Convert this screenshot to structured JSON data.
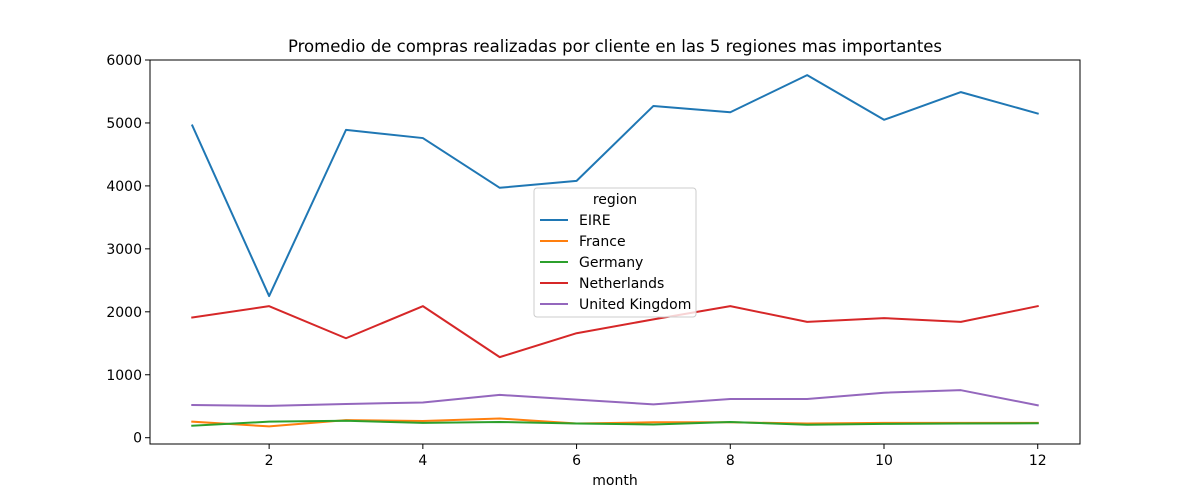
{
  "chart_data": {
    "type": "line",
    "title": "Promedio de compras realizadas por cliente en las 5 regiones mas importantes",
    "xlabel": "month",
    "ylabel": "",
    "xlim": [
      0.45,
      12.55
    ],
    "ylim": [
      -100,
      6000
    ],
    "xticks": [
      2,
      4,
      6,
      8,
      10,
      12
    ],
    "yticks": [
      0,
      1000,
      2000,
      3000,
      4000,
      5000,
      6000
    ],
    "x": [
      1,
      2,
      3,
      4,
      5,
      6,
      7,
      8,
      9,
      10,
      11,
      12
    ],
    "legend_title": "region",
    "legend_position": "center",
    "grid": false,
    "series": [
      {
        "name": "EIRE",
        "color": "#1f77b4",
        "values": [
          4960,
          2250,
          4890,
          4760,
          3970,
          4080,
          5270,
          5170,
          5760,
          5050,
          5490,
          5150
        ]
      },
      {
        "name": "France",
        "color": "#ff7f0e",
        "values": [
          255,
          180,
          280,
          265,
          305,
          225,
          245,
          245,
          225,
          235,
          235,
          235
        ]
      },
      {
        "name": "Germany",
        "color": "#2ca02c",
        "values": [
          190,
          255,
          270,
          235,
          250,
          225,
          210,
          250,
          205,
          220,
          225,
          230
        ]
      },
      {
        "name": "Netherlands",
        "color": "#d62728",
        "values": [
          1910,
          2090,
          1580,
          2090,
          1280,
          1660,
          1880,
          2090,
          1840,
          1900,
          1840,
          2090
        ]
      },
      {
        "name": "United Kingdom",
        "color": "#9467bd",
        "values": [
          520,
          505,
          535,
          560,
          680,
          605,
          530,
          615,
          615,
          715,
          755,
          515
        ]
      }
    ]
  }
}
